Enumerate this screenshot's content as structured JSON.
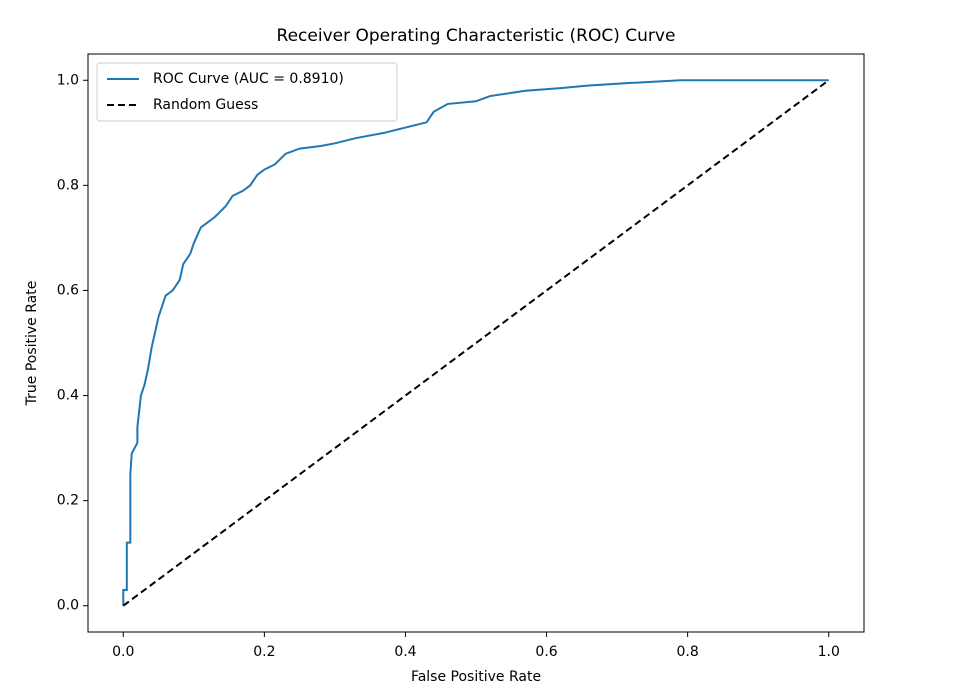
{
  "chart_data": {
    "type": "line",
    "title": "Receiver Operating Characteristic (ROC) Curve",
    "xlabel": "False Positive Rate",
    "ylabel": "True Positive Rate",
    "xlim": [
      -0.05,
      1.05
    ],
    "ylim": [
      -0.05,
      1.05
    ],
    "xticks": [
      {
        "value": 0,
        "label": "0.0"
      },
      0.2,
      0.4,
      0.6,
      0.8,
      {
        "value": 1,
        "label": "1.0"
      }
    ],
    "yticks": [
      {
        "value": 0,
        "label": "0.0"
      },
      0.2,
      0.4,
      0.6,
      0.8,
      {
        "value": 1,
        "label": "1.0"
      }
    ],
    "legend": "upper-left",
    "grid": false,
    "series": [
      {
        "name": "ROC Curve (AUC = 0.8910)",
        "color": "#1f77b4",
        "dash": "solid",
        "x": [
          0,
          0,
          0.005,
          0.005,
          0.01,
          0.01,
          0.01,
          0.012,
          0.02,
          0.02,
          0.025,
          0.03,
          0.035,
          0.04,
          0.045,
          0.05,
          0.055,
          0.06,
          0.07,
          0.08,
          0.085,
          0.095,
          0.1,
          0.11,
          0.12,
          0.13,
          0.145,
          0.155,
          0.17,
          0.18,
          0.19,
          0.2,
          0.215,
          0.23,
          0.25,
          0.28,
          0.3,
          0.33,
          0.37,
          0.4,
          0.43,
          0.44,
          0.46,
          0.5,
          0.52,
          0.57,
          0.62,
          0.66,
          0.72,
          0.79,
          1.0
        ],
        "values": [
          0,
          0.03,
          0.03,
          0.12,
          0.12,
          0.13,
          0.25,
          0.29,
          0.31,
          0.34,
          0.4,
          0.42,
          0.45,
          0.49,
          0.52,
          0.55,
          0.57,
          0.59,
          0.6,
          0.62,
          0.65,
          0.67,
          0.69,
          0.72,
          0.73,
          0.74,
          0.76,
          0.78,
          0.79,
          0.8,
          0.82,
          0.83,
          0.84,
          0.86,
          0.87,
          0.875,
          0.88,
          0.89,
          0.9,
          0.91,
          0.92,
          0.94,
          0.955,
          0.96,
          0.97,
          0.98,
          0.985,
          0.99,
          0.995,
          1.0,
          1.0
        ]
      },
      {
        "name": "Random Guess",
        "color": "#000000",
        "dash": "dashed",
        "x": [
          0,
          1
        ],
        "values": [
          0,
          1
        ]
      }
    ]
  }
}
